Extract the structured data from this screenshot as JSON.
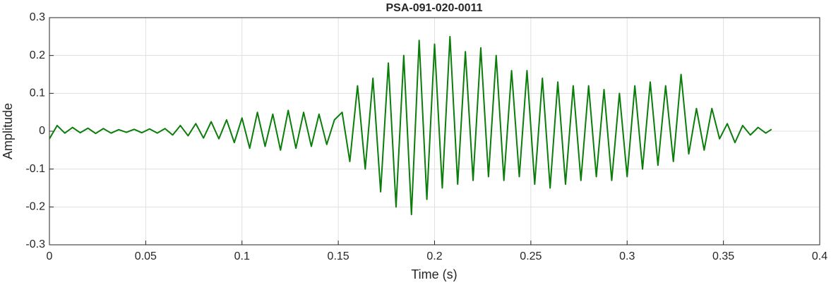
{
  "chart_data": {
    "type": "line",
    "title": "PSA-091-020-0011",
    "x_label": "Time (s)",
    "y_label": "Amplitude",
    "x": [
      0,
      0.004,
      0.008,
      0.012,
      0.016,
      0.02,
      0.024,
      0.028,
      0.032,
      0.036,
      0.04,
      0.044,
      0.048,
      0.052,
      0.056,
      0.06,
      0.064,
      0.068,
      0.072,
      0.076,
      0.08,
      0.084,
      0.088,
      0.092,
      0.096,
      0.1,
      0.104,
      0.108,
      0.112,
      0.116,
      0.12,
      0.124,
      0.128,
      0.132,
      0.136,
      0.14,
      0.144,
      0.148,
      0.152,
      0.156,
      0.16,
      0.164,
      0.168,
      0.172,
      0.176,
      0.18,
      0.184,
      0.188,
      0.192,
      0.196,
      0.2,
      0.204,
      0.208,
      0.212,
      0.216,
      0.22,
      0.224,
      0.228,
      0.232,
      0.236,
      0.24,
      0.244,
      0.248,
      0.252,
      0.256,
      0.26,
      0.264,
      0.268,
      0.272,
      0.276,
      0.28,
      0.284,
      0.288,
      0.292,
      0.296,
      0.3,
      0.304,
      0.308,
      0.312,
      0.316,
      0.32,
      0.324,
      0.328,
      0.332,
      0.336,
      0.34,
      0.344,
      0.348,
      0.352,
      0.356,
      0.36,
      0.364,
      0.368,
      0.372,
      0.375
    ],
    "series": [
      {
        "color": "#0a7d0a",
        "values": [
          -0.02,
          0.015,
          -0.005,
          0.01,
          -0.004,
          0.008,
          -0.006,
          0.007,
          -0.005,
          0.004,
          -0.003,
          0.005,
          -0.004,
          0.006,
          -0.005,
          0.007,
          -0.01,
          0.015,
          -0.012,
          0.02,
          -0.018,
          0.025,
          -0.02,
          0.03,
          -0.03,
          0.035,
          -0.045,
          0.05,
          -0.04,
          0.045,
          -0.05,
          0.055,
          -0.045,
          0.05,
          -0.04,
          0.045,
          -0.035,
          0.03,
          0.05,
          -0.08,
          0.12,
          -0.1,
          0.14,
          -0.16,
          0.18,
          -0.2,
          0.2,
          -0.22,
          0.24,
          -0.18,
          0.23,
          -0.15,
          0.25,
          -0.14,
          0.21,
          -0.13,
          0.22,
          -0.12,
          0.2,
          -0.13,
          0.16,
          -0.12,
          0.16,
          -0.14,
          0.14,
          -0.15,
          0.13,
          -0.14,
          0.12,
          -0.13,
          0.12,
          -0.12,
          0.11,
          -0.13,
          0.1,
          -0.12,
          0.12,
          -0.1,
          0.13,
          -0.09,
          0.12,
          -0.08,
          0.15,
          -0.06,
          0.06,
          -0.05,
          0.06,
          -0.02,
          0.02,
          -0.03,
          0.015,
          -0.01,
          0.01,
          -0.005,
          0.005
        ]
      }
    ],
    "xlim": [
      0,
      0.4
    ],
    "xticks": [
      0,
      0.05,
      0.1,
      0.15,
      0.2,
      0.25,
      0.3,
      0.35,
      0.4
    ],
    "ylim": [
      -0.3,
      0.3
    ],
    "yticks": [
      -0.3,
      -0.2,
      -0.1,
      0,
      0.1,
      0.2,
      0.3
    ],
    "grid": true
  }
}
